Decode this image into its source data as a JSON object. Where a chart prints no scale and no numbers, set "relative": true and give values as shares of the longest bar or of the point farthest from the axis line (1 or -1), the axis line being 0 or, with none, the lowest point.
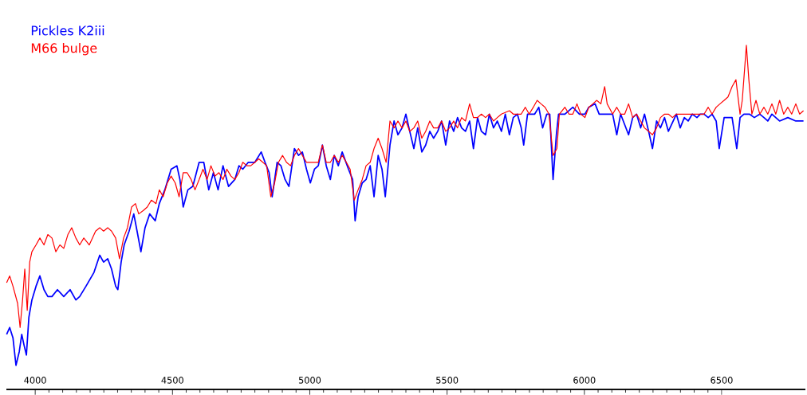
{
  "chart_data": {
    "type": "line",
    "relative": true,
    "xlim": [
      3895,
      6805
    ],
    "xticks": [
      4000,
      4500,
      5000,
      5500,
      6000,
      6500
    ],
    "legend": "top left",
    "series": [
      {
        "name": "Pickles K2iii",
        "color": "#0000ff",
        "x": [
          3896,
          3907,
          3919,
          3930,
          3942,
          3951,
          3959,
          3968,
          3977,
          3988,
          4003,
          4017,
          4032,
          4046,
          4061,
          4081,
          4104,
          4127,
          4148,
          4162,
          4185,
          4214,
          4235,
          4249,
          4264,
          4278,
          4293,
          4301,
          4313,
          4324,
          4342,
          4359,
          4371,
          4385,
          4400,
          4417,
          4437,
          4452,
          4472,
          4495,
          4516,
          4527,
          4539,
          4556,
          4574,
          4597,
          4614,
          4632,
          4649,
          4666,
          4684,
          4704,
          4727,
          4742,
          4756,
          4776,
          4800,
          4823,
          4837,
          4852,
          4863,
          4881,
          4895,
          4910,
          4924,
          4944,
          4959,
          4973,
          4988,
          5002,
          5017,
          5031,
          5046,
          5060,
          5075,
          5089,
          5104,
          5118,
          5141,
          5156,
          5165,
          5176,
          5191,
          5205,
          5220,
          5234,
          5249,
          5263,
          5275,
          5292,
          5307,
          5321,
          5336,
          5350,
          5364,
          5379,
          5393,
          5408,
          5422,
          5437,
          5451,
          5466,
          5480,
          5495,
          5509,
          5524,
          5538,
          5553,
          5567,
          5582,
          5596,
          5611,
          5625,
          5640,
          5654,
          5669,
          5683,
          5698,
          5712,
          5727,
          5741,
          5756,
          5770,
          5779,
          5793,
          5808,
          5819,
          5834,
          5848,
          5863,
          5874,
          5886,
          5898,
          5906,
          5929,
          5958,
          5982,
          6002,
          6016,
          6039,
          6054,
          6068,
          6089,
          6103,
          6118,
          6132,
          6161,
          6176,
          6190,
          6205,
          6219,
          6234,
          6248,
          6263,
          6277,
          6292,
          6306,
          6335,
          6349,
          6364,
          6378,
          6393,
          6410,
          6422,
          6436,
          6451,
          6465,
          6480,
          6491,
          6509,
          6523,
          6538,
          6555,
          6567,
          6581,
          6601,
          6619,
          6639,
          6654,
          6668,
          6683,
          6697,
          6711,
          6741,
          6770,
          6798
        ],
        "values": [
          0.16,
          0.18,
          0.15,
          0.07,
          0.11,
          0.16,
          0.13,
          0.1,
          0.21,
          0.26,
          0.3,
          0.33,
          0.29,
          0.27,
          0.27,
          0.29,
          0.27,
          0.29,
          0.26,
          0.27,
          0.3,
          0.34,
          0.39,
          0.37,
          0.38,
          0.35,
          0.3,
          0.29,
          0.37,
          0.42,
          0.46,
          0.51,
          0.46,
          0.4,
          0.47,
          0.51,
          0.49,
          0.54,
          0.58,
          0.64,
          0.65,
          0.61,
          0.53,
          0.58,
          0.59,
          0.66,
          0.66,
          0.58,
          0.63,
          0.58,
          0.65,
          0.59,
          0.61,
          0.65,
          0.64,
          0.66,
          0.66,
          0.69,
          0.66,
          0.63,
          0.56,
          0.66,
          0.65,
          0.61,
          0.59,
          0.7,
          0.68,
          0.69,
          0.64,
          0.6,
          0.64,
          0.65,
          0.71,
          0.65,
          0.61,
          0.68,
          0.65,
          0.69,
          0.64,
          0.61,
          0.49,
          0.56,
          0.6,
          0.61,
          0.65,
          0.56,
          0.68,
          0.64,
          0.56,
          0.71,
          0.78,
          0.74,
          0.76,
          0.8,
          0.75,
          0.7,
          0.76,
          0.69,
          0.71,
          0.75,
          0.73,
          0.75,
          0.78,
          0.71,
          0.78,
          0.75,
          0.79,
          0.76,
          0.75,
          0.78,
          0.7,
          0.79,
          0.75,
          0.74,
          0.8,
          0.76,
          0.78,
          0.75,
          0.8,
          0.74,
          0.79,
          0.8,
          0.76,
          0.71,
          0.8,
          0.8,
          0.8,
          0.82,
          0.76,
          0.8,
          0.8,
          0.61,
          0.74,
          0.8,
          0.8,
          0.82,
          0.8,
          0.8,
          0.82,
          0.83,
          0.8,
          0.8,
          0.8,
          0.8,
          0.74,
          0.8,
          0.74,
          0.79,
          0.8,
          0.76,
          0.8,
          0.75,
          0.7,
          0.78,
          0.76,
          0.79,
          0.75,
          0.8,
          0.76,
          0.79,
          0.78,
          0.8,
          0.79,
          0.8,
          0.8,
          0.79,
          0.8,
          0.78,
          0.7,
          0.79,
          0.79,
          0.79,
          0.7,
          0.79,
          0.8,
          0.8,
          0.79,
          0.8,
          0.79,
          0.78,
          0.8,
          0.79,
          0.78,
          0.79,
          0.78,
          0.78
        ]
      },
      {
        "name": "M66 bulge",
        "color": "#ff0000",
        "x": [
          3896,
          3907,
          3919,
          3936,
          3945,
          3954,
          3962,
          3971,
          3980,
          3988,
          4003,
          4017,
          4032,
          4046,
          4061,
          4075,
          4090,
          4104,
          4119,
          4133,
          4148,
          4162,
          4177,
          4197,
          4220,
          4235,
          4249,
          4264,
          4278,
          4293,
          4307,
          4322,
          4336,
          4351,
          4365,
          4377,
          4394,
          4408,
          4423,
          4440,
          4452,
          4466,
          4481,
          4495,
          4510,
          4524,
          4539,
          4553,
          4568,
          4582,
          4597,
          4611,
          4626,
          4640,
          4655,
          4669,
          4684,
          4698,
          4713,
          4727,
          4742,
          4756,
          4771,
          4785,
          4800,
          4814,
          4829,
          4843,
          4858,
          4872,
          4886,
          4901,
          4915,
          4930,
          4944,
          4959,
          4973,
          4988,
          5008,
          5031,
          5046,
          5060,
          5075,
          5089,
          5104,
          5118,
          5133,
          5147,
          5162,
          5176,
          5191,
          5205,
          5220,
          5234,
          5249,
          5263,
          5278,
          5292,
          5307,
          5321,
          5336,
          5350,
          5364,
          5379,
          5393,
          5408,
          5422,
          5437,
          5451,
          5466,
          5480,
          5495,
          5509,
          5524,
          5538,
          5553,
          5567,
          5582,
          5596,
          5611,
          5625,
          5640,
          5654,
          5669,
          5683,
          5698,
          5727,
          5741,
          5756,
          5770,
          5785,
          5799,
          5814,
          5828,
          5842,
          5857,
          5871,
          5886,
          5900,
          5909,
          5929,
          5944,
          5958,
          5973,
          5987,
          6002,
          6016,
          6031,
          6045,
          6060,
          6074,
          6083,
          6103,
          6118,
          6132,
          6147,
          6161,
          6176,
          6190,
          6205,
          6219,
          6234,
          6248,
          6263,
          6277,
          6292,
          6306,
          6321,
          6335,
          6349,
          6364,
          6378,
          6393,
          6407,
          6422,
          6436,
          6451,
          6465,
          6480,
          6494,
          6509,
          6523,
          6538,
          6552,
          6567,
          6575,
          6590,
          6599,
          6610,
          6625,
          6639,
          6654,
          6668,
          6683,
          6697,
          6711,
          6726,
          6741,
          6755,
          6770,
          6784,
          6798
        ],
        "values": [
          0.31,
          0.33,
          0.3,
          0.25,
          0.18,
          0.26,
          0.35,
          0.23,
          0.37,
          0.4,
          0.42,
          0.44,
          0.42,
          0.45,
          0.44,
          0.4,
          0.42,
          0.41,
          0.45,
          0.47,
          0.44,
          0.42,
          0.44,
          0.42,
          0.46,
          0.47,
          0.46,
          0.47,
          0.46,
          0.44,
          0.38,
          0.44,
          0.47,
          0.53,
          0.54,
          0.51,
          0.52,
          0.53,
          0.55,
          0.54,
          0.58,
          0.56,
          0.6,
          0.62,
          0.6,
          0.56,
          0.63,
          0.63,
          0.61,
          0.58,
          0.61,
          0.64,
          0.61,
          0.65,
          0.62,
          0.63,
          0.61,
          0.64,
          0.62,
          0.61,
          0.63,
          0.66,
          0.65,
          0.65,
          0.66,
          0.67,
          0.66,
          0.65,
          0.56,
          0.6,
          0.66,
          0.68,
          0.66,
          0.65,
          0.68,
          0.7,
          0.68,
          0.66,
          0.66,
          0.66,
          0.71,
          0.66,
          0.66,
          0.68,
          0.66,
          0.68,
          0.66,
          0.64,
          0.55,
          0.58,
          0.61,
          0.65,
          0.66,
          0.7,
          0.73,
          0.7,
          0.66,
          0.78,
          0.76,
          0.78,
          0.76,
          0.78,
          0.75,
          0.76,
          0.78,
          0.73,
          0.75,
          0.78,
          0.76,
          0.76,
          0.78,
          0.75,
          0.76,
          0.78,
          0.76,
          0.79,
          0.78,
          0.83,
          0.79,
          0.79,
          0.8,
          0.79,
          0.8,
          0.78,
          0.79,
          0.8,
          0.81,
          0.8,
          0.8,
          0.8,
          0.82,
          0.8,
          0.82,
          0.84,
          0.83,
          0.82,
          0.8,
          0.68,
          0.7,
          0.8,
          0.82,
          0.8,
          0.8,
          0.83,
          0.8,
          0.79,
          0.82,
          0.83,
          0.84,
          0.83,
          0.88,
          0.83,
          0.8,
          0.82,
          0.8,
          0.8,
          0.83,
          0.79,
          0.8,
          0.78,
          0.76,
          0.75,
          0.74,
          0.76,
          0.79,
          0.8,
          0.8,
          0.79,
          0.8,
          0.8,
          0.8,
          0.8,
          0.8,
          0.8,
          0.8,
          0.8,
          0.82,
          0.8,
          0.82,
          0.83,
          0.84,
          0.85,
          0.88,
          0.9,
          0.8,
          0.84,
          1.0,
          0.9,
          0.8,
          0.84,
          0.8,
          0.82,
          0.8,
          0.83,
          0.8,
          0.84,
          0.8,
          0.82,
          0.8,
          0.83,
          0.8,
          0.81
        ]
      }
    ]
  }
}
